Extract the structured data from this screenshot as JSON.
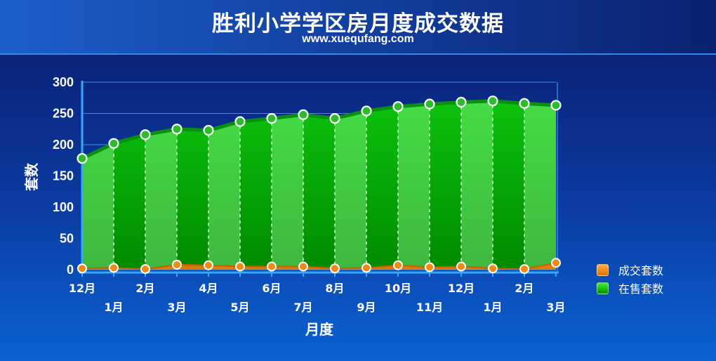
{
  "title": "胜利小学学区房月度成交数据",
  "subtitle": "www.xuequfang.com",
  "colors": {
    "listed_fill": "#10c810",
    "listed_line": "#0a8f12",
    "sold_fill": "#e07a0a",
    "sold_marker": "#f08a14",
    "grid": "#3aa0ff"
  },
  "chart_data": {
    "type": "area",
    "title": "胜利小学学区房月度成交数据",
    "xlabel": "月度",
    "ylabel": "套数",
    "ylim": [
      0,
      300
    ],
    "yticks": [
      0,
      50,
      100,
      150,
      200,
      250,
      300
    ],
    "grid": true,
    "legend_position": "right",
    "categories": [
      "12月",
      "1月",
      "2月",
      "3月",
      "4月",
      "5月",
      "6月",
      "7月",
      "8月",
      "9月",
      "10月",
      "11月",
      "12月",
      "1月",
      "2月",
      "3月"
    ],
    "series": [
      {
        "name": "成交套数",
        "values": [
          2,
          3,
          1,
          8,
          7,
          5,
          5,
          5,
          2,
          3,
          7,
          4,
          5,
          2,
          1,
          11
        ]
      },
      {
        "name": "在售套数",
        "values": [
          178,
          202,
          216,
          225,
          223,
          237,
          242,
          248,
          242,
          254,
          261,
          265,
          268,
          270,
          266,
          263
        ]
      }
    ]
  }
}
